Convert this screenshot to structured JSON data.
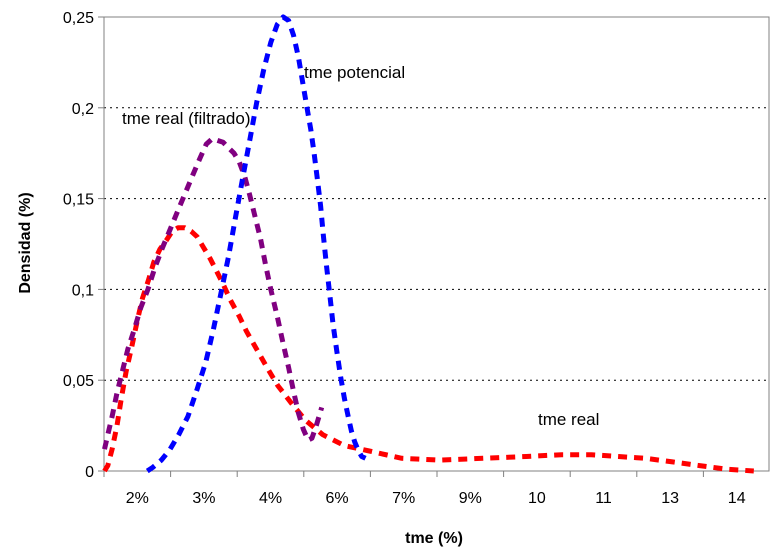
{
  "chart_data": {
    "type": "line",
    "xlabel": "tme (%)",
    "ylabel": "Densidad (%)",
    "ylim": [
      0,
      0.25
    ],
    "yticks": [
      "0",
      "0,05",
      "0,1",
      "0,15",
      "0,2",
      "0,25"
    ],
    "xtick_labels": [
      "2%",
      "3%",
      "4%",
      "6%",
      "7%",
      "9%",
      "10",
      "11",
      "13",
      "14"
    ],
    "grid": "horizontal dotted",
    "annotations": [
      {
        "text": "tme potencial",
        "series": "tme potencial"
      },
      {
        "text": "tme real (filtrado)",
        "series": "tme real (filtrado)"
      },
      {
        "text": "tme real",
        "series": "tme real"
      }
    ],
    "series": [
      {
        "name": "tme real",
        "color": "#ff0000",
        "x": [
          1.91,
          1.97,
          2.05,
          2.14,
          2.22,
          2.31,
          2.41,
          2.51,
          2.61,
          2.72,
          2.82,
          2.93,
          3.05,
          3.16,
          3.27,
          3.39,
          3.51,
          3.62,
          3.74,
          3.86,
          3.98,
          4.1,
          4.22,
          4.4,
          4.53,
          4.72,
          4.91,
          5.11,
          5.37,
          5.62,
          5.94,
          6.34,
          6.8,
          7.4,
          8.11,
          8.9,
          9.7,
          10.35,
          10.9,
          11.4,
          11.9,
          12.4,
          12.9,
          13.4,
          13.9
        ],
        "y": [
          0.0,
          0.003,
          0.012,
          0.025,
          0.04,
          0.055,
          0.068,
          0.082,
          0.095,
          0.105,
          0.115,
          0.122,
          0.127,
          0.132,
          0.134,
          0.134,
          0.132,
          0.129,
          0.123,
          0.117,
          0.11,
          0.103,
          0.095,
          0.085,
          0.077,
          0.067,
          0.057,
          0.047,
          0.037,
          0.028,
          0.02,
          0.014,
          0.011,
          0.007,
          0.006,
          0.007,
          0.008,
          0.009,
          0.009,
          0.008,
          0.007,
          0.005,
          0.003,
          0.001,
          0.0
        ]
      },
      {
        "name": "tme real (filtrado)",
        "color": "#800080",
        "x": [
          1.91,
          1.97,
          2.05,
          2.14,
          2.24,
          2.34,
          2.46,
          2.58,
          2.71,
          2.84,
          2.98,
          3.12,
          3.26,
          3.4,
          3.54,
          3.67,
          3.79,
          3.9,
          4.0,
          4.1,
          4.2,
          4.3,
          4.4,
          4.5,
          4.59,
          4.69,
          4.79,
          4.88,
          4.98,
          5.1,
          5.21,
          5.31,
          5.4,
          5.49,
          5.58,
          5.67,
          5.74,
          5.82,
          5.92
        ],
        "y": [
          0.012,
          0.02,
          0.03,
          0.043,
          0.055,
          0.067,
          0.078,
          0.09,
          0.1,
          0.112,
          0.123,
          0.133,
          0.143,
          0.153,
          0.163,
          0.172,
          0.18,
          0.183,
          0.182,
          0.181,
          0.178,
          0.175,
          0.17,
          0.162,
          0.152,
          0.14,
          0.128,
          0.114,
          0.1,
          0.085,
          0.07,
          0.057,
          0.044,
          0.032,
          0.023,
          0.017,
          0.018,
          0.025,
          0.035
        ]
      },
      {
        "name": "tme potencial",
        "color": "#0000ff",
        "x": [
          2.7,
          2.8,
          2.96,
          3.12,
          3.28,
          3.45,
          3.62,
          3.78,
          3.92,
          4.06,
          4.2,
          4.33,
          4.46,
          4.59,
          4.72,
          4.85,
          4.98,
          5.1,
          5.21,
          5.31,
          5.4,
          5.49,
          5.57,
          5.65,
          5.72,
          5.78,
          5.84,
          5.9,
          5.95,
          6.01,
          6.07,
          6.13,
          6.2,
          6.27,
          6.34,
          6.41,
          6.47,
          6.53,
          6.6,
          6.66,
          6.73
        ],
        "y": [
          0.0,
          0.002,
          0.006,
          0.012,
          0.02,
          0.03,
          0.045,
          0.06,
          0.078,
          0.098,
          0.118,
          0.14,
          0.161,
          0.182,
          0.203,
          0.221,
          0.236,
          0.246,
          0.25,
          0.248,
          0.24,
          0.228,
          0.214,
          0.2,
          0.188,
          0.175,
          0.161,
          0.146,
          0.13,
          0.113,
          0.097,
          0.081,
          0.066,
          0.052,
          0.04,
          0.03,
          0.022,
          0.016,
          0.011,
          0.008,
          0.007
        ]
      }
    ]
  }
}
